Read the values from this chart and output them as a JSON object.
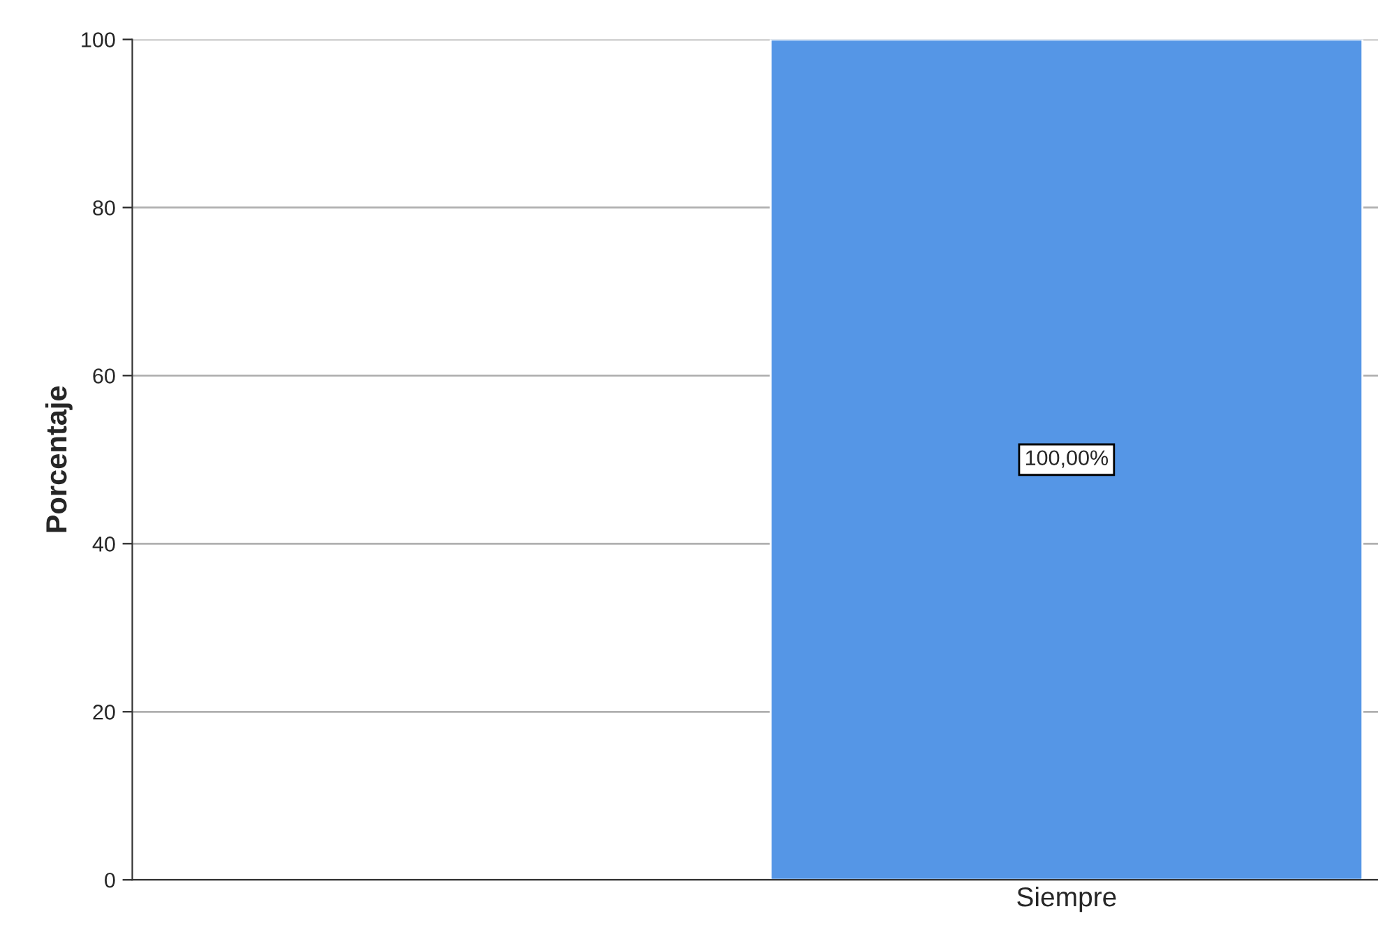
{
  "chart_data": {
    "type": "bar",
    "ylabel": "Porcentaje",
    "categories": [
      null,
      "Siempre"
    ],
    "values": [
      null,
      100
    ],
    "color": "#5596e6",
    "value_labels": [
      null,
      "100,00%"
    ],
    "ylim": [
      0,
      100
    ],
    "yticks": [
      0,
      20,
      40,
      60,
      80,
      100
    ],
    "grid": "y",
    "legend": false
  }
}
